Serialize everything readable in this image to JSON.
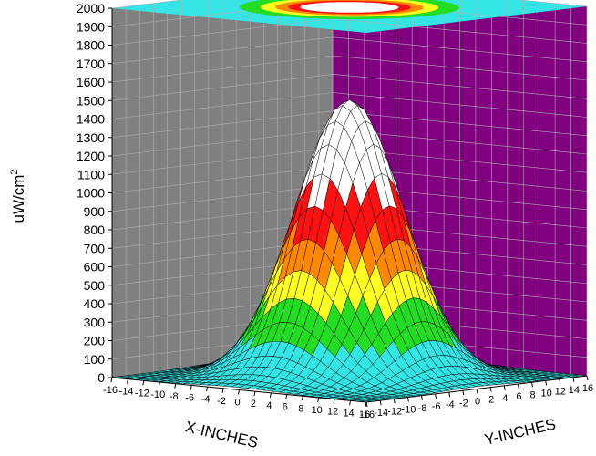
{
  "chart_data": {
    "type": "surface3d",
    "title": "",
    "zlabel": "uW/cm",
    "zlabel_sup": "2",
    "xlabel": "X-INCHES",
    "ylabel": "Y-INCHES",
    "zlim": [
      0,
      2000
    ],
    "z_ticks": [
      "0",
      "100",
      "200",
      "300",
      "400",
      "500",
      "600",
      "700",
      "800",
      "900",
      "1000",
      "1100",
      "1200",
      "1300",
      "1400",
      "1500",
      "1600",
      "1700",
      "1800",
      "1900",
      "2000"
    ],
    "x_ticks": [
      "-16",
      "-14",
      "-12",
      "-10",
      "-8",
      "-6",
      "-4",
      "-2",
      "0",
      "2",
      "4",
      "6",
      "8",
      "10",
      "12",
      "14",
      "16"
    ],
    "y_ticks": [
      "-16",
      "-14",
      "-12",
      "-10",
      "-8",
      "-6",
      "-4",
      "-2",
      "0",
      "2",
      "4",
      "6",
      "8",
      "10",
      "12",
      "14",
      "16"
    ],
    "xlim": [
      -16,
      16
    ],
    "ylim": [
      -16,
      16
    ],
    "peak_value": 1500,
    "color_bands": [
      {
        "from": 0,
        "to": 200,
        "color": "#33e5e5"
      },
      {
        "from": 200,
        "to": 400,
        "color": "#22dd22"
      },
      {
        "from": 400,
        "to": 600,
        "color": "#ffff22"
      },
      {
        "from": 600,
        "to": 800,
        "color": "#ff8800"
      },
      {
        "from": 800,
        "to": 1000,
        "color": "#ff1111"
      },
      {
        "from": 1000,
        "to": 2000,
        "color": "#ffffff"
      }
    ],
    "walls": {
      "left": "#808080",
      "right": "#800080",
      "top": "#33e5e5"
    },
    "grid": true
  }
}
